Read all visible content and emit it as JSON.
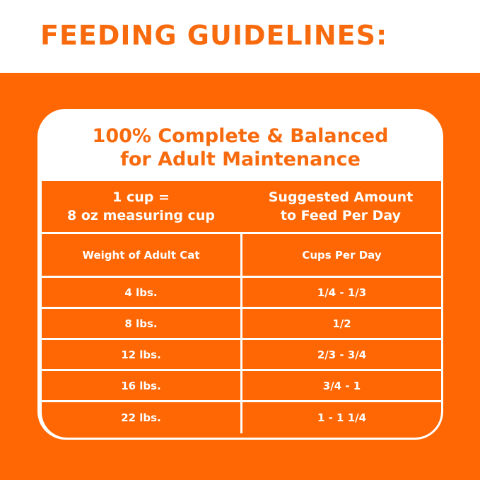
{
  "heading": "FEEDING GUIDELINES:",
  "card": {
    "title_line1": "100% Complete & Balanced",
    "title_line2": "for Adult Maintenance"
  },
  "table": {
    "header": {
      "left_line1": "1 cup =",
      "left_line2": "8 oz measuring cup",
      "right_line1": "Suggested Amount",
      "right_line2": "to Feed Per Day"
    },
    "columns": [
      "Weight of Adult Cat",
      "Cups Per Day"
    ],
    "rows": [
      [
        "4 lbs.",
        "1/4 - 1/3"
      ],
      [
        "8 lbs.",
        "1/2"
      ],
      [
        "12 lbs.",
        "2/3 - 3/4"
      ],
      [
        "16 lbs.",
        "3/4 - 1"
      ],
      [
        "22 lbs.",
        "1 - 1 1/4"
      ]
    ]
  },
  "colors": {
    "orange": "#fe6703",
    "title_orange": "#f86a0e",
    "white": "#ffffff"
  }
}
